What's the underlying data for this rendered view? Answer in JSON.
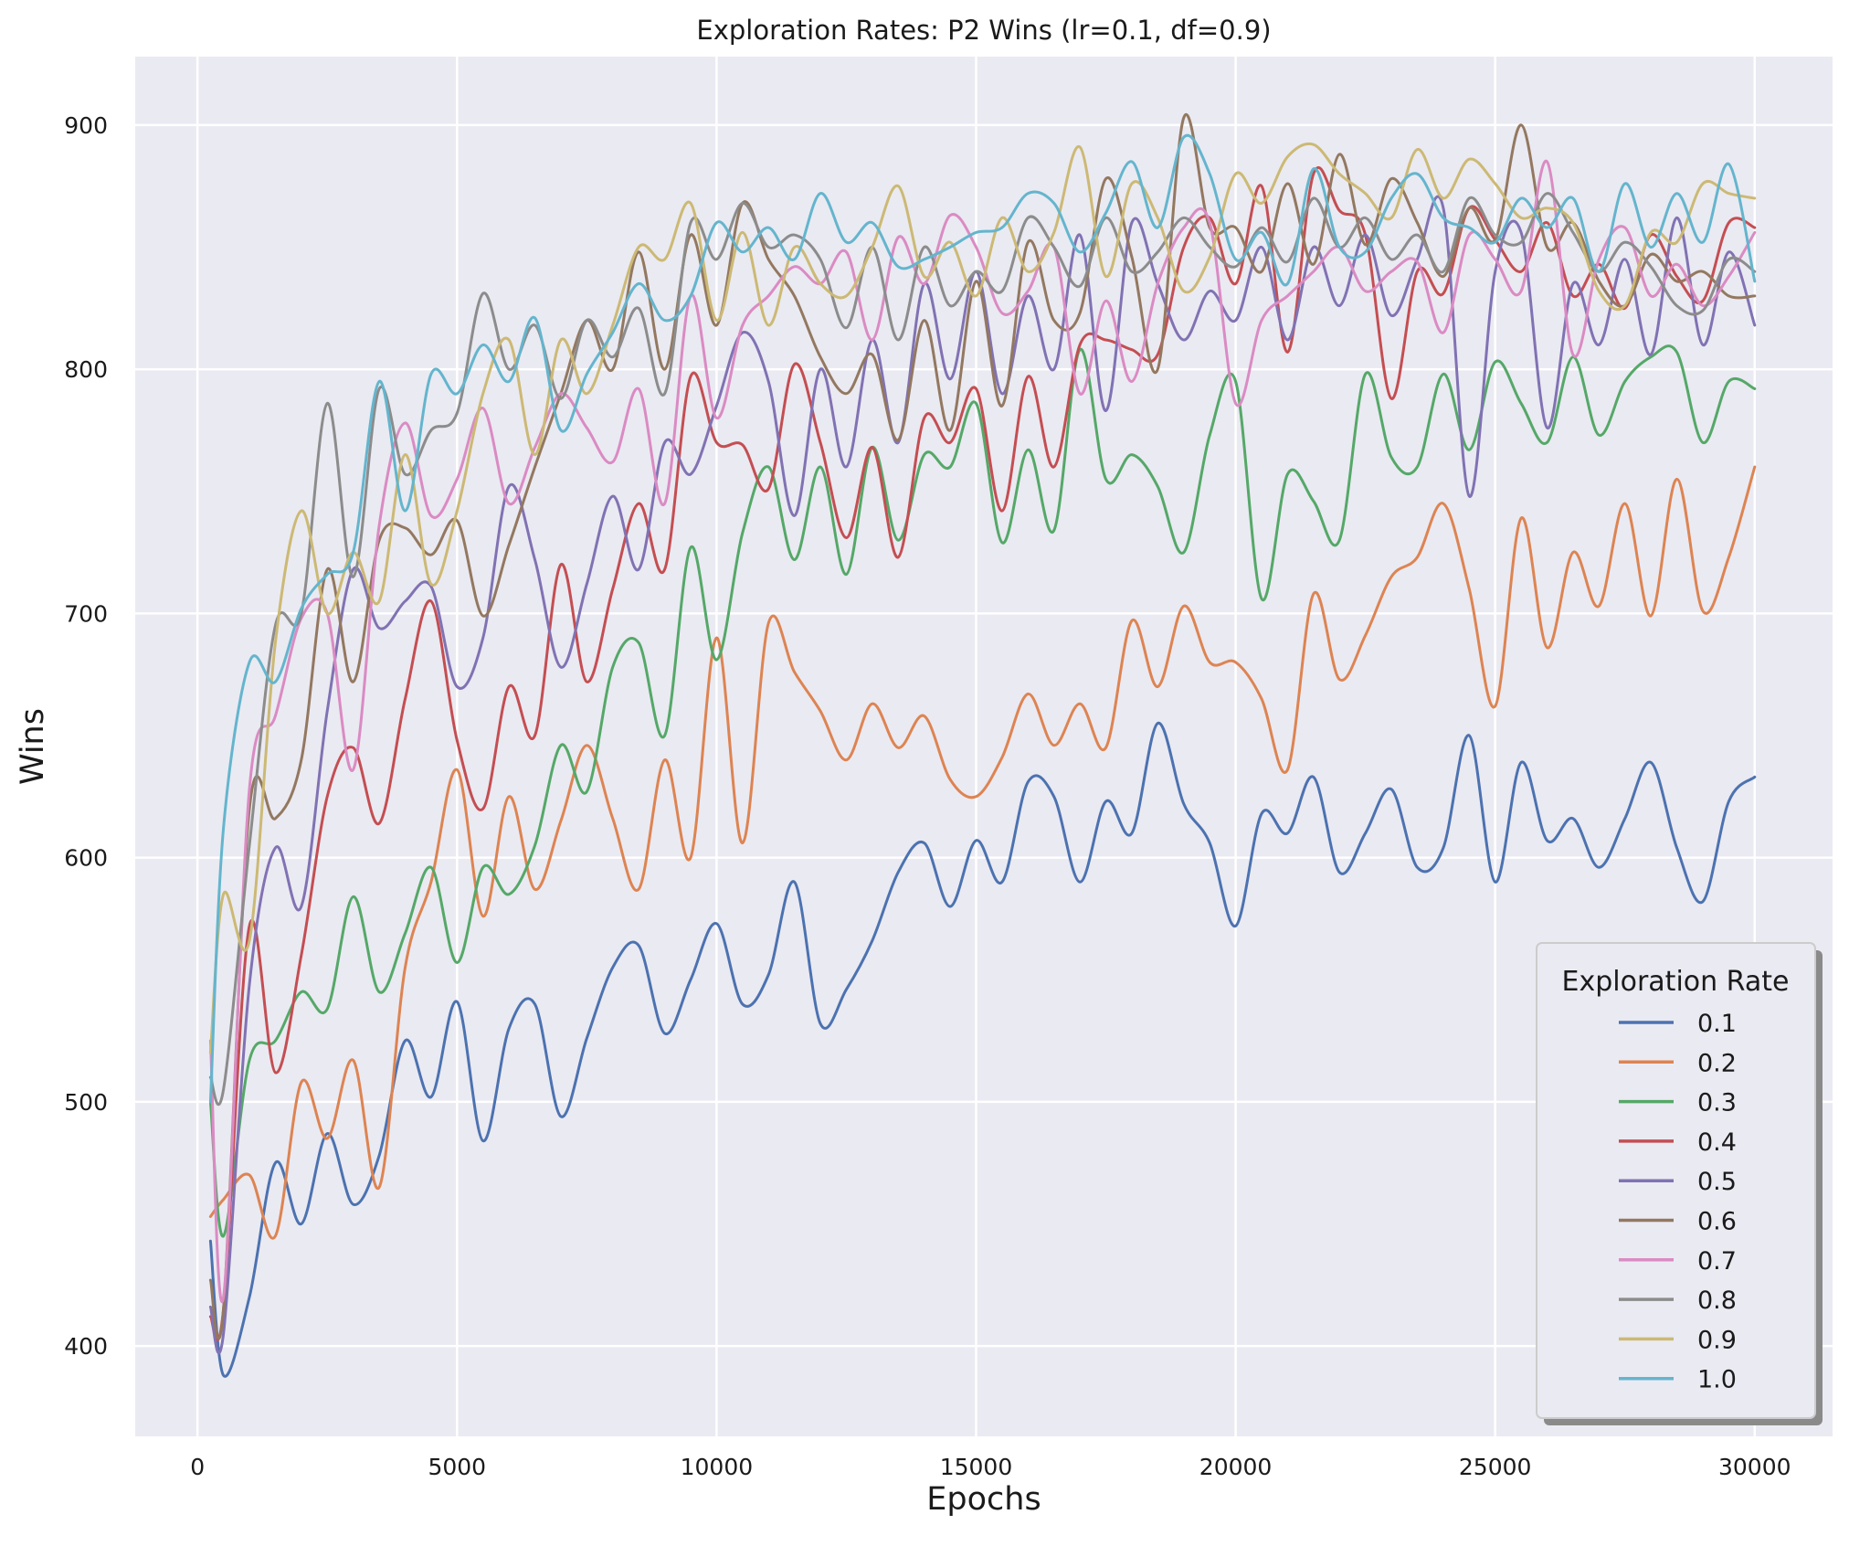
{
  "chart_data": {
    "type": "line",
    "title": "Exploration Rates: P2 Wins (lr=0.1, df=0.9)",
    "xlabel": "Epochs",
    "ylabel": "Wins",
    "xlim": [
      -1200,
      31500
    ],
    "ylim": [
      363,
      928
    ],
    "xticks": [
      0,
      5000,
      10000,
      15000,
      20000,
      25000,
      30000
    ],
    "yticks": [
      400,
      500,
      600,
      700,
      800,
      900
    ],
    "xtick_labels": [
      "0",
      "5000",
      "10000",
      "15000",
      "20000",
      "25000",
      "30000"
    ],
    "ytick_labels": [
      "400",
      "500",
      "600",
      "700",
      "800",
      "900"
    ],
    "grid": true,
    "legend": {
      "title": "Exploration Rate",
      "position": "lower-right"
    },
    "x": [
      250,
      500,
      1000,
      1500,
      2000,
      2500,
      3000,
      3500,
      4000,
      4500,
      5000,
      5500,
      6000,
      6500,
      7000,
      7500,
      8000,
      8500,
      9000,
      9500,
      10000,
      10500,
      11000,
      11500,
      12000,
      12500,
      13000,
      13500,
      14000,
      14500,
      15000,
      15500,
      16000,
      16500,
      17000,
      17500,
      18000,
      18500,
      19000,
      19500,
      20000,
      20500,
      21000,
      21500,
      22000,
      22500,
      23000,
      23500,
      24000,
      24500,
      25000,
      25500,
      26000,
      26500,
      27000,
      27500,
      28000,
      28500,
      29000,
      29500,
      30000
    ],
    "series": [
      {
        "name": "0.1",
        "color": "#4c72b0",
        "values": [
          443,
          388,
          420,
          475,
          450,
          487,
          458,
          478,
          525,
          502,
          541,
          484,
          530,
          540,
          494,
          526,
          555,
          564,
          528,
          550,
          573,
          540,
          552,
          590,
          532,
          546,
          566,
          594,
          606,
          580,
          607,
          590,
          631,
          625,
          590,
          623,
          610,
          655,
          622,
          606,
          572,
          618,
          610,
          633,
          594,
          610,
          628,
          596,
          604,
          650,
          590,
          639,
          607,
          616,
          596,
          616,
          639,
          604,
          582,
          623,
          633
        ]
      },
      {
        "name": "0.2",
        "color": "#dd8452",
        "values": [
          453,
          460,
          470,
          445,
          508,
          485,
          517,
          465,
          555,
          590,
          636,
          576,
          625,
          587,
          615,
          646,
          616,
          587,
          640,
          600,
          690,
          606,
          696,
          676,
          660,
          640,
          663,
          645,
          658,
          632,
          625,
          641,
          667,
          646,
          663,
          645,
          697,
          670,
          703,
          680,
          680,
          665,
          636,
          708,
          673,
          691,
          715,
          723,
          745,
          710,
          662,
          739,
          686,
          725,
          703,
          745,
          699,
          755,
          701,
          723,
          760
        ]
      },
      {
        "name": "0.3",
        "color": "#55a868",
        "values": [
          500,
          445,
          517,
          525,
          545,
          538,
          584,
          545,
          569,
          596,
          557,
          596,
          585,
          605,
          646,
          627,
          678,
          688,
          650,
          727,
          681,
          733,
          760,
          722,
          760,
          716,
          768,
          730,
          765,
          760,
          786,
          729,
          767,
          734,
          808,
          755,
          765,
          752,
          725,
          773,
          795,
          706,
          757,
          746,
          730,
          798,
          764,
          760,
          798,
          767,
          803,
          786,
          770,
          805,
          773,
          795,
          805,
          807,
          770,
          795,
          792
        ]
      },
      {
        "name": "0.4",
        "color": "#c44e52",
        "values": [
          412,
          415,
          572,
          512,
          560,
          625,
          645,
          614,
          665,
          705,
          648,
          620,
          670,
          650,
          720,
          672,
          710,
          745,
          718,
          797,
          770,
          769,
          751,
          802,
          770,
          731,
          768,
          723,
          780,
          770,
          792,
          742,
          797,
          760,
          810,
          812,
          808,
          806,
          850,
          862,
          835,
          875,
          807,
          880,
          865,
          855,
          788,
          840,
          831,
          866,
          853,
          840,
          860,
          830,
          843,
          825,
          855,
          838,
          828,
          860,
          858
        ]
      },
      {
        "name": "0.5",
        "color": "#8172b3",
        "values": [
          416,
          405,
          548,
          604,
          580,
          660,
          718,
          694,
          705,
          711,
          670,
          690,
          752,
          722,
          678,
          712,
          748,
          718,
          770,
          757,
          785,
          815,
          795,
          740,
          800,
          760,
          812,
          770,
          835,
          796,
          840,
          790,
          830,
          800,
          855,
          783,
          860,
          835,
          812,
          832,
          820,
          850,
          812,
          850,
          826,
          855,
          822,
          845,
          866,
          748,
          840,
          856,
          776,
          835,
          810,
          845,
          806,
          862,
          810,
          848,
          818
        ]
      },
      {
        "name": "0.6",
        "color": "#937860",
        "values": [
          427,
          415,
          620,
          616,
          640,
          718,
          672,
          730,
          735,
          724,
          738,
          699,
          728,
          760,
          790,
          820,
          800,
          848,
          800,
          855,
          818,
          868,
          845,
          830,
          805,
          790,
          806,
          771,
          820,
          775,
          836,
          785,
          852,
          820,
          823,
          878,
          846,
          800,
          903,
          858,
          858,
          840,
          876,
          843,
          888,
          851,
          878,
          860,
          838,
          866,
          853,
          900,
          850,
          860,
          836,
          826,
          847,
          836,
          840,
          830,
          830
        ]
      },
      {
        "name": "0.7",
        "color": "#da8bc3",
        "values": [
          525,
          420,
          628,
          658,
          698,
          700,
          636,
          736,
          778,
          740,
          755,
          784,
          745,
          768,
          790,
          776,
          762,
          792,
          745,
          830,
          780,
          818,
          830,
          842,
          835,
          848,
          812,
          854,
          835,
          863,
          850,
          823,
          832,
          850,
          790,
          828,
          795,
          835,
          858,
          860,
          786,
          820,
          830,
          840,
          850,
          832,
          840,
          844,
          815,
          855,
          845,
          832,
          885,
          806,
          845,
          858,
          830,
          843,
          826,
          838,
          856
        ]
      },
      {
        "name": "0.8",
        "color": "#8c8c8c",
        "values": [
          510,
          505,
          605,
          695,
          700,
          786,
          715,
          792,
          757,
          775,
          782,
          831,
          800,
          818,
          788,
          820,
          805,
          825,
          790,
          860,
          845,
          868,
          850,
          855,
          845,
          817,
          850,
          812,
          850,
          826,
          840,
          832,
          862,
          850,
          834,
          862,
          840,
          848,
          862,
          850,
          842,
          858,
          844,
          870,
          850,
          862,
          845,
          855,
          840,
          870,
          855,
          852,
          872,
          856,
          840,
          852,
          842,
          826,
          824,
          845,
          840
        ]
      },
      {
        "name": "0.9",
        "color": "#ccb974",
        "values": [
          520,
          585,
          566,
          688,
          742,
          700,
          725,
          705,
          765,
          712,
          742,
          790,
          812,
          765,
          812,
          790,
          818,
          850,
          845,
          868,
          820,
          856,
          818,
          850,
          835,
          830,
          850,
          875,
          838,
          852,
          830,
          862,
          840,
          856,
          891,
          838,
          876,
          862,
          832,
          846,
          880,
          868,
          887,
          892,
          880,
          872,
          862,
          890,
          870,
          886,
          876,
          862,
          866,
          860,
          832,
          826,
          856,
          852,
          876,
          872,
          870
        ]
      },
      {
        "name": "1.0",
        "color": "#64b5cd",
        "values": [
          500,
          612,
          680,
          672,
          702,
          716,
          725,
          795,
          742,
          798,
          790,
          810,
          795,
          821,
          775,
          798,
          815,
          835,
          820,
          830,
          860,
          848,
          858,
          845,
          872,
          852,
          860,
          842,
          845,
          850,
          856,
          858,
          872,
          868,
          848,
          864,
          885,
          858,
          895,
          880,
          845,
          856,
          835,
          882,
          850,
          848,
          870,
          880,
          862,
          858,
          852,
          870,
          858,
          870,
          840,
          876,
          850,
          872,
          852,
          884,
          836
        ]
      }
    ]
  }
}
